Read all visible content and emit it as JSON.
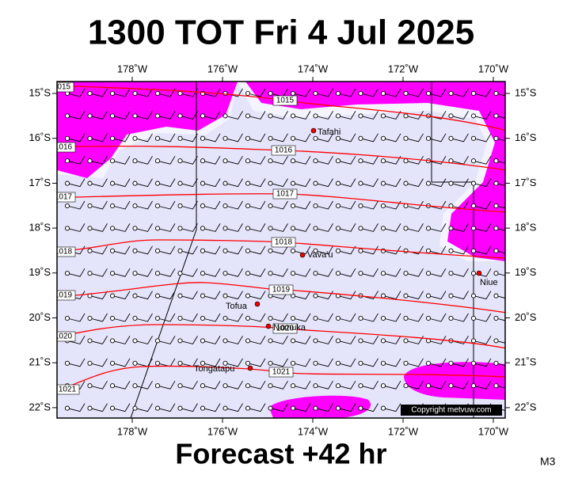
{
  "header": {
    "title": "1300 TOT Fri 4 Jul 2025"
  },
  "footer": {
    "subtitle": "Forecast +42 hr",
    "code": "M3"
  },
  "map": {
    "lon_labels": [
      "178˚W",
      "176˚W",
      "174˚W",
      "172˚W",
      "170˚W"
    ],
    "lat_labels": [
      "15˚S",
      "16˚S",
      "17˚S",
      "18˚S",
      "19˚S",
      "20˚S",
      "21˚S",
      "22˚S"
    ],
    "isobars": [
      "1015",
      "1016",
      "1017",
      "1018",
      "1019",
      "1020",
      "1021"
    ],
    "places": [
      "Tafahi",
      "Vava'u",
      "Niue",
      "Tofua",
      "Nomuka",
      "Tongatapu"
    ],
    "copyright": "Copyright metvuw.com"
  }
}
